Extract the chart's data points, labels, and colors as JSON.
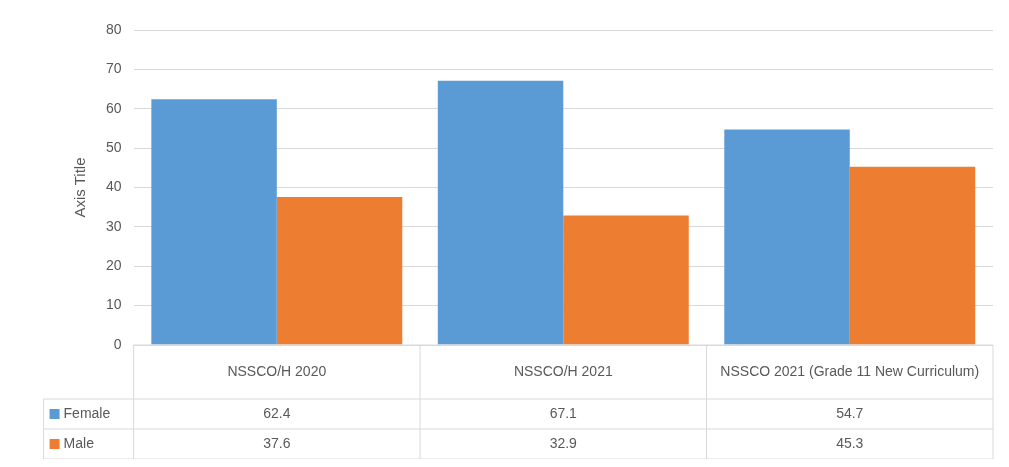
{
  "chart_data": {
    "type": "bar",
    "ylabel": "Axis Title",
    "categories": [
      "NSSCO/H 2020",
      "NSSCO/H 2021",
      "NSSCO 2021 (Grade 11 New Curriculum)"
    ],
    "series": [
      {
        "name": "Female",
        "color": "#5b9bd5",
        "values": [
          62.4,
          67.1,
          54.7
        ]
      },
      {
        "name": "Male",
        "color": "#ed7d31",
        "values": [
          37.6,
          32.9,
          45.3
        ]
      }
    ],
    "ylim": [
      0,
      80
    ],
    "yticks": [
      0,
      10,
      20,
      30,
      40,
      50,
      60,
      70,
      80
    ],
    "grid": "y",
    "legend": "bottom",
    "data_labels": true
  }
}
